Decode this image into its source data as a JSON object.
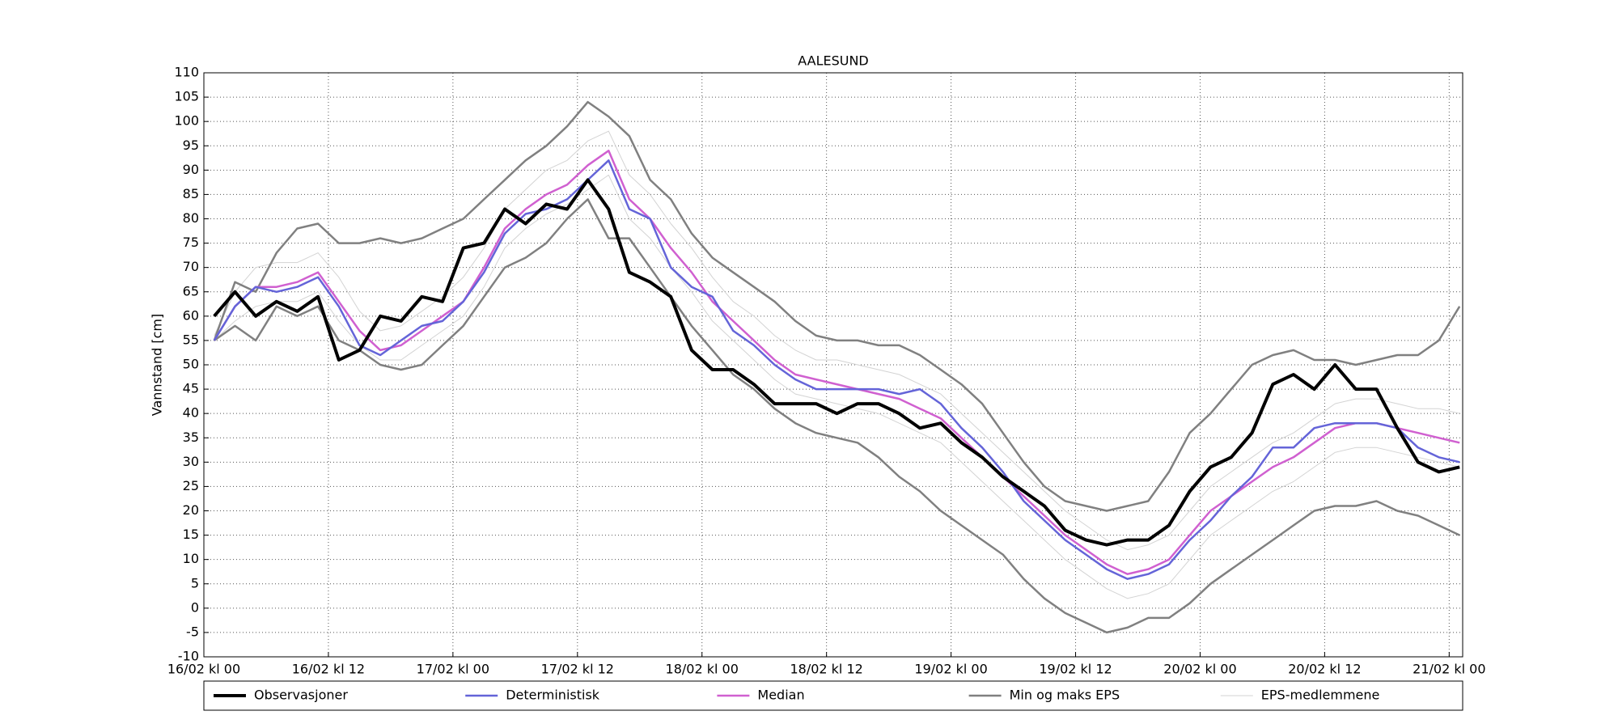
{
  "chart_data": {
    "type": "line",
    "title": "AALESUND",
    "y_label": "Vannstand [cm]",
    "x": [
      1,
      3,
      5,
      7,
      9,
      11,
      13,
      15,
      17,
      19,
      21,
      23,
      25,
      27,
      29,
      31,
      33,
      35,
      37,
      39,
      41,
      43,
      45,
      47,
      49,
      51,
      53,
      55,
      57,
      59,
      61,
      63,
      65,
      67,
      69,
      71,
      73,
      75,
      77,
      79,
      81,
      83,
      85,
      87,
      89,
      91,
      93,
      95,
      97,
      99,
      101,
      103,
      105,
      107,
      109,
      111,
      113,
      115,
      117,
      119,
      121
    ],
    "xlim": [
      0,
      121.3
    ],
    "xticks": [
      {
        "value": 0,
        "label": "16/02 kl 00"
      },
      {
        "value": 12,
        "label": "16/02 kl 12"
      },
      {
        "value": 24,
        "label": "17/02 kl 00"
      },
      {
        "value": 36,
        "label": "17/02 kl 12"
      },
      {
        "value": 48,
        "label": "18/02 kl 00"
      },
      {
        "value": 60,
        "label": "18/02 kl 12"
      },
      {
        "value": 72,
        "label": "19/02 kl 00"
      },
      {
        "value": 84,
        "label": "19/02 kl 12"
      },
      {
        "value": 96,
        "label": "20/02 kl 00"
      },
      {
        "value": 108,
        "label": "20/02 kl 12"
      },
      {
        "value": 120,
        "label": "21/02 kl 00"
      }
    ],
    "ylim": [
      -10,
      110
    ],
    "yticks": [
      -10,
      -5,
      0,
      5,
      10,
      15,
      20,
      25,
      30,
      35,
      40,
      45,
      50,
      55,
      60,
      65,
      70,
      75,
      80,
      85,
      90,
      95,
      100,
      105,
      110
    ],
    "grid": true,
    "series": [
      {
        "name": "Observasjoner",
        "color": "#000000",
        "values": [
          60,
          65,
          60,
          63,
          61,
          64,
          51,
          53,
          60,
          59,
          64,
          63,
          74,
          75,
          82,
          79,
          83,
          82,
          88,
          82,
          69,
          67,
          64,
          53,
          49,
          49,
          46,
          42,
          42,
          42,
          40,
          42,
          42,
          40,
          37,
          38,
          34,
          31,
          27,
          24,
          21,
          16,
          14,
          13,
          14,
          14,
          17,
          24,
          29,
          31,
          36,
          46,
          48,
          45,
          50,
          45,
          45,
          37,
          30,
          28,
          29
        ]
      },
      {
        "name": "Deterministisk",
        "color": "#6464d8",
        "values": [
          55,
          62,
          66,
          65,
          66,
          68,
          62,
          54,
          52,
          55,
          58,
          59,
          63,
          69,
          77,
          81,
          82,
          84,
          88,
          92,
          82,
          80,
          70,
          66,
          64,
          57,
          54,
          50,
          47,
          45,
          45,
          45,
          45,
          44,
          45,
          42,
          37,
          33,
          28,
          22,
          18,
          14,
          11,
          8,
          6,
          7,
          9,
          14,
          18,
          23,
          27,
          33,
          33,
          37,
          38,
          38,
          38,
          37,
          33,
          31,
          30
        ]
      },
      {
        "name": "Median",
        "color": "#d060d0",
        "values": [
          55,
          62,
          66,
          66,
          67,
          69,
          63,
          57,
          53,
          54,
          57,
          60,
          63,
          70,
          78,
          82,
          85,
          87,
          91,
          94,
          84,
          80,
          74,
          69,
          63,
          59,
          55,
          51,
          48,
          47,
          46,
          45,
          44,
          43,
          41,
          39,
          35,
          31,
          27,
          23,
          19,
          15,
          12,
          9,
          7,
          8,
          10,
          15,
          20,
          23,
          26,
          29,
          31,
          34,
          37,
          38,
          38,
          37,
          36,
          35,
          34
        ]
      },
      {
        "name": "Min og maks EPS",
        "color": "#808080",
        "max": [
          55,
          67,
          65,
          73,
          78,
          79,
          75,
          75,
          76,
          75,
          76,
          78,
          80,
          84,
          88,
          92,
          95,
          99,
          104,
          101,
          97,
          88,
          84,
          77,
          72,
          69,
          66,
          63,
          59,
          56,
          55,
          55,
          54,
          54,
          52,
          49,
          46,
          42,
          36,
          30,
          25,
          22,
          21,
          20,
          21,
          22,
          28,
          36,
          40,
          45,
          50,
          52,
          53,
          51,
          51,
          50,
          51,
          52,
          52,
          55,
          62
        ],
        "min": [
          55,
          58,
          55,
          62,
          60,
          62,
          55,
          53,
          50,
          49,
          50,
          54,
          58,
          64,
          70,
          72,
          75,
          80,
          84,
          76,
          76,
          70,
          64,
          58,
          53,
          48,
          45,
          41,
          38,
          36,
          35,
          34,
          31,
          27,
          24,
          20,
          17,
          14,
          11,
          6,
          2,
          -1,
          -3,
          -5,
          -4,
          -2,
          -2,
          1,
          5,
          8,
          11,
          14,
          17,
          20,
          21,
          21,
          22,
          20,
          19,
          17,
          15
        ]
      },
      {
        "name": "EPS-medlemmene",
        "color": "#d3d3d3",
        "members": [
          [
            56,
            65,
            70,
            71,
            71,
            73,
            68,
            61,
            57,
            58,
            61,
            64,
            68,
            74,
            82,
            86,
            90,
            92,
            96,
            98,
            89,
            85,
            79,
            74,
            68,
            63,
            60,
            56,
            53,
            51,
            51,
            50,
            49,
            48,
            46,
            44,
            40,
            36,
            32,
            28,
            24,
            20,
            17,
            14,
            12,
            13,
            15,
            20,
            25,
            28,
            31,
            34,
            36,
            39,
            42,
            43,
            43,
            42,
            41,
            41,
            40
          ],
          [
            55,
            59,
            62,
            63,
            63,
            65,
            59,
            54,
            51,
            51,
            54,
            57,
            60,
            66,
            74,
            78,
            81,
            83,
            86,
            89,
            80,
            76,
            70,
            65,
            59,
            55,
            51,
            47,
            44,
            43,
            42,
            41,
            40,
            38,
            36,
            34,
            30,
            26,
            22,
            18,
            14,
            10,
            7,
            4,
            2,
            3,
            5,
            10,
            15,
            18,
            21,
            24,
            26,
            29,
            32,
            33,
            33,
            32,
            31,
            30,
            29
          ]
        ]
      }
    ]
  }
}
